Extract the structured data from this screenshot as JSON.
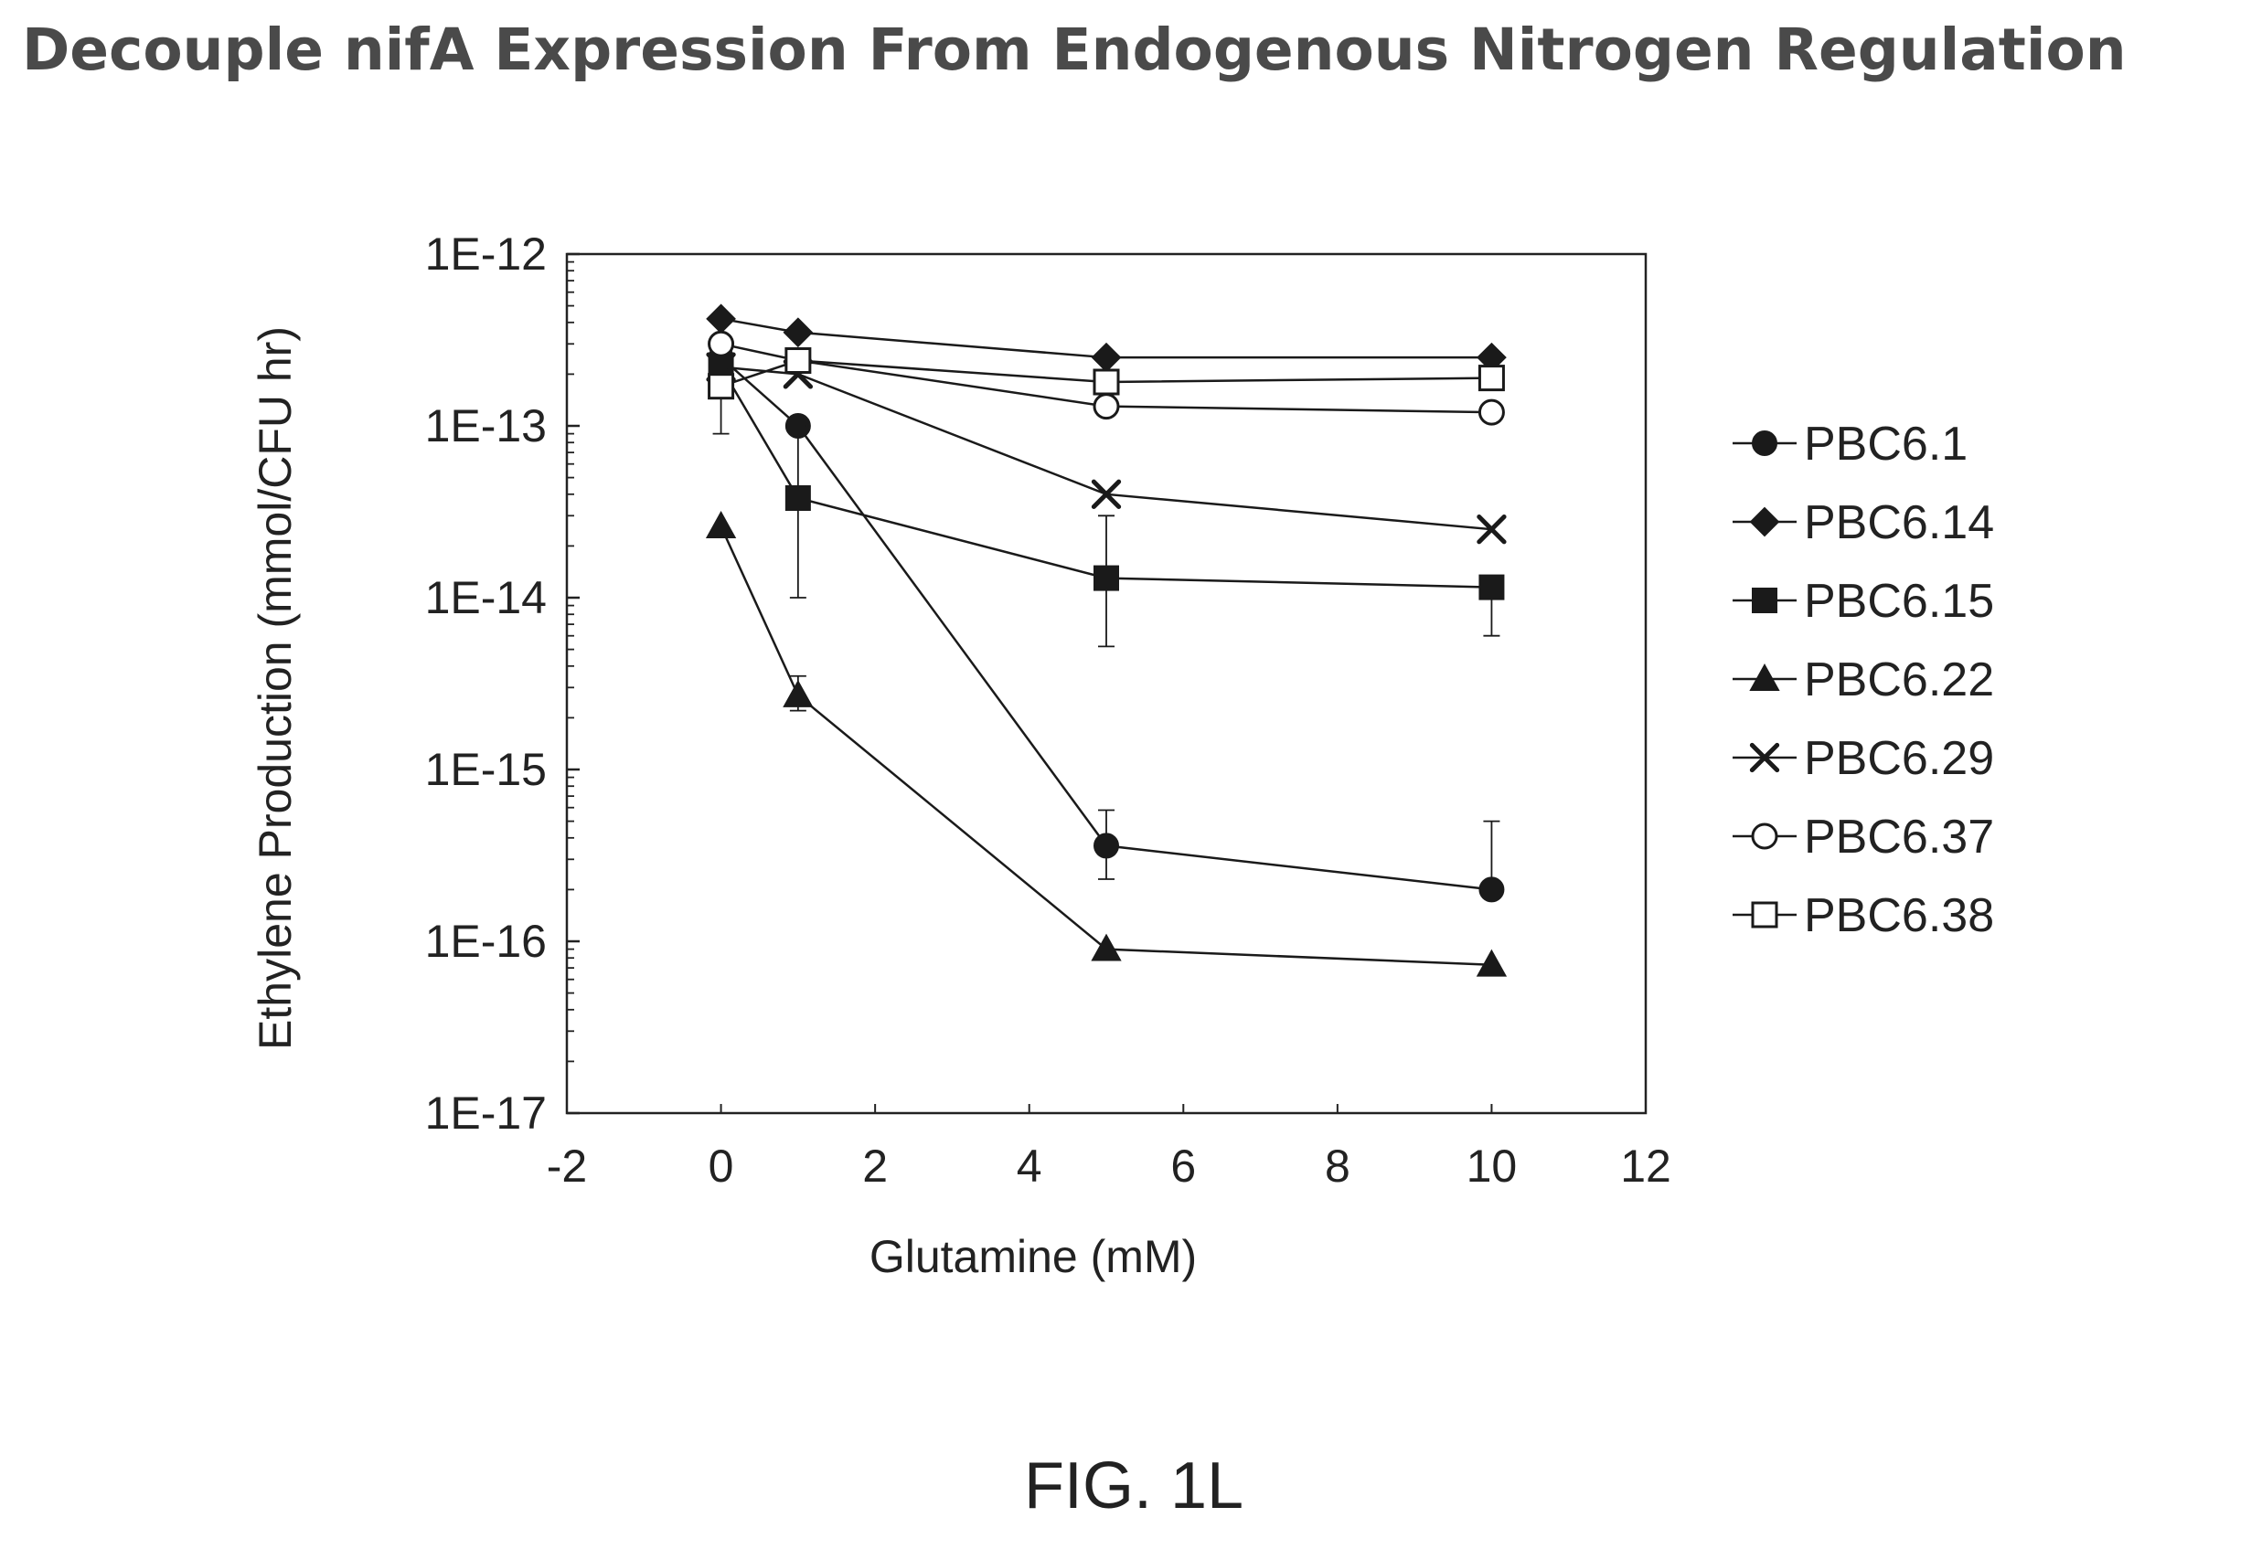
{
  "page_title": "Decouple nifA Expression From Endogenous Nitrogen Regulation",
  "figure_label": "FIG. 1L",
  "chart_data": {
    "type": "scatter",
    "title": "Decouple nifA Expression From Endogenous Nitrogen Regulation",
    "xlabel": "Glutamine (mM)",
    "ylabel": "Ethylene Production (mmol/CFU hr)",
    "xlim": [
      -2,
      12
    ],
    "ylim": [
      1e-17,
      1e-12
    ],
    "yscale": "log",
    "x_ticks": [
      -2,
      0,
      2,
      4,
      6,
      8,
      10,
      12
    ],
    "x_tick_labels": [
      "-2",
      "0",
      "2",
      "4",
      "6",
      "8",
      "10",
      "12"
    ],
    "y_ticks": [
      1e-12,
      1e-13,
      1e-14,
      1e-15,
      1e-16,
      1e-17
    ],
    "y_tick_labels": [
      "1E-12",
      "1E-13",
      "1E-14",
      "1E-15",
      "1E-16",
      "1E-17"
    ],
    "grid": false,
    "legend_position": "right",
    "marker_color": "#1a1a1a",
    "series": [
      {
        "name": "PBC6.1",
        "marker": "circle-filled",
        "x": [
          0,
          1,
          5,
          10
        ],
        "y": [
          2.5e-13,
          1e-13,
          3.6e-16,
          2e-16
        ],
        "err_low": [
          null,
          null,
          2.3e-16,
          null
        ],
        "err_high": [
          null,
          null,
          5.8e-16,
          5e-16
        ]
      },
      {
        "name": "PBC6.14",
        "marker": "diamond-filled",
        "x": [
          0,
          1,
          5,
          10
        ],
        "y": [
          4.2e-13,
          3.5e-13,
          2.5e-13,
          2.5e-13
        ],
        "err_low": [
          null,
          null,
          null,
          null
        ],
        "err_high": [
          null,
          null,
          null,
          null
        ]
      },
      {
        "name": "PBC6.15",
        "marker": "square-filled",
        "x": [
          0,
          1,
          5,
          10
        ],
        "y": [
          2.2e-13,
          3.8e-14,
          1.3e-14,
          1.15e-14
        ],
        "err_low": [
          null,
          1e-14,
          5.2e-15,
          6e-15
        ],
        "err_high": [
          null,
          1e-13,
          3e-14,
          null
        ]
      },
      {
        "name": "PBC6.22",
        "marker": "triangle-filled",
        "x": [
          0,
          1,
          5,
          10
        ],
        "y": [
          2.6e-14,
          2.7e-15,
          9e-17,
          7.3e-17
        ],
        "err_low": [
          null,
          2.2e-15,
          null,
          null
        ],
        "err_high": [
          null,
          3.5e-15,
          null,
          null
        ]
      },
      {
        "name": "PBC6.29",
        "marker": "x",
        "x": [
          0,
          1,
          5,
          10
        ],
        "y": [
          2.2e-13,
          2e-13,
          4e-14,
          2.5e-14
        ],
        "err_low": [
          null,
          null,
          null,
          null
        ],
        "err_high": [
          null,
          null,
          null,
          null
        ]
      },
      {
        "name": "PBC6.37",
        "marker": "circle-open",
        "x": [
          0,
          1,
          5,
          10
        ],
        "y": [
          3e-13,
          2.4e-13,
          1.3e-13,
          1.2e-13
        ],
        "err_low": [
          null,
          null,
          null,
          null
        ],
        "err_high": [
          null,
          null,
          null,
          null
        ]
      },
      {
        "name": "PBC6.38",
        "marker": "square-open",
        "x": [
          0,
          1,
          5,
          10
        ],
        "y": [
          1.7e-13,
          2.4e-13,
          1.8e-13,
          1.9e-13
        ],
        "err_low": [
          9e-14,
          null,
          null,
          null
        ],
        "err_high": [
          null,
          null,
          null,
          null
        ]
      }
    ]
  }
}
